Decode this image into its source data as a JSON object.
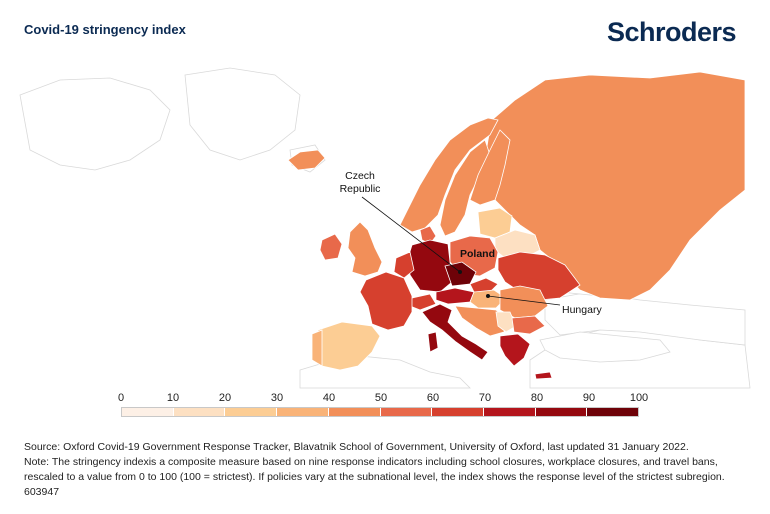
{
  "header": {
    "title": "Covid-19 stringency index",
    "logo_text": "Schroders"
  },
  "map": {
    "highlighted_countries": [
      {
        "name": "Czech Republic",
        "label": "Czech\nRepublic",
        "index_bin": "90-100"
      },
      {
        "name": "Poland",
        "label": "Poland",
        "index_bin": "50-60"
      },
      {
        "name": "Hungary",
        "label": "Hungary",
        "index_bin": "20-30"
      }
    ],
    "color_bins": [
      "#fdf0e6",
      "#fde0c2",
      "#fccd94",
      "#f9b378",
      "#f28f59",
      "#e8694a",
      "#d6402e",
      "#b4151c",
      "#94080f",
      "#6e0208"
    ],
    "legend_ticks": [
      "0",
      "10",
      "20",
      "30",
      "40",
      "50",
      "60",
      "70",
      "80",
      "90",
      "100"
    ]
  },
  "footnote": {
    "source": "Source: Oxford Covid-19 Government Response Tracker, Blavatnik School of Government, University of Oxford, last updated 31 January 2022.",
    "note": "Note: The stringency indexis a composite measure based on nine response indicators including school closures, workplace closures, and travel bans, rescaled to a value from 0 to 100 (100 = strictest). If policies vary at the subnational level, the index shows the response level of the strictest subregion. 603947"
  }
}
